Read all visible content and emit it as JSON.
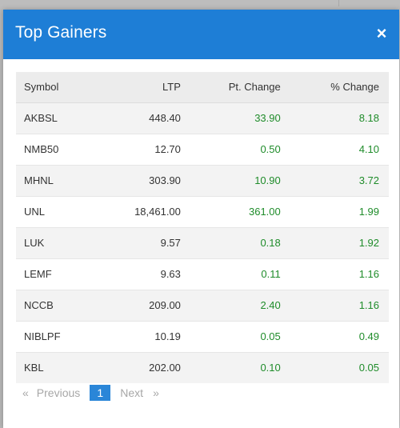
{
  "modal": {
    "title": "Top Gainers",
    "close_symbol": "×"
  },
  "table": {
    "headers": {
      "symbol": "Symbol",
      "ltp": "LTP",
      "pt_change": "Pt. Change",
      "pct_change": "% Change"
    },
    "rows": [
      {
        "symbol": "AKBSL",
        "ltp": "448.40",
        "pt_change": "33.90",
        "pct_change": "8.18"
      },
      {
        "symbol": "NMB50",
        "ltp": "12.70",
        "pt_change": "0.50",
        "pct_change": "4.10"
      },
      {
        "symbol": "MHNL",
        "ltp": "303.90",
        "pt_change": "10.90",
        "pct_change": "3.72"
      },
      {
        "symbol": "UNL",
        "ltp": "18,461.00",
        "pt_change": "361.00",
        "pct_change": "1.99"
      },
      {
        "symbol": "LUK",
        "ltp": "9.57",
        "pt_change": "0.18",
        "pct_change": "1.92"
      },
      {
        "symbol": "LEMF",
        "ltp": "9.63",
        "pt_change": "0.11",
        "pct_change": "1.16"
      },
      {
        "symbol": "NCCB",
        "ltp": "209.00",
        "pt_change": "2.40",
        "pct_change": "1.16"
      },
      {
        "symbol": "NIBLPF",
        "ltp": "10.19",
        "pt_change": "0.05",
        "pct_change": "0.49"
      },
      {
        "symbol": "KBL",
        "ltp": "202.00",
        "pt_change": "0.10",
        "pct_change": "0.05"
      }
    ]
  },
  "pagination": {
    "first_symbol": "«",
    "previous_label": "Previous",
    "current_page": "1",
    "next_label": "Next",
    "last_symbol": "»"
  },
  "colors": {
    "header_bg": "#1e7ed6",
    "positive": "#1f8c2a",
    "active_page": "#2a86d8"
  }
}
